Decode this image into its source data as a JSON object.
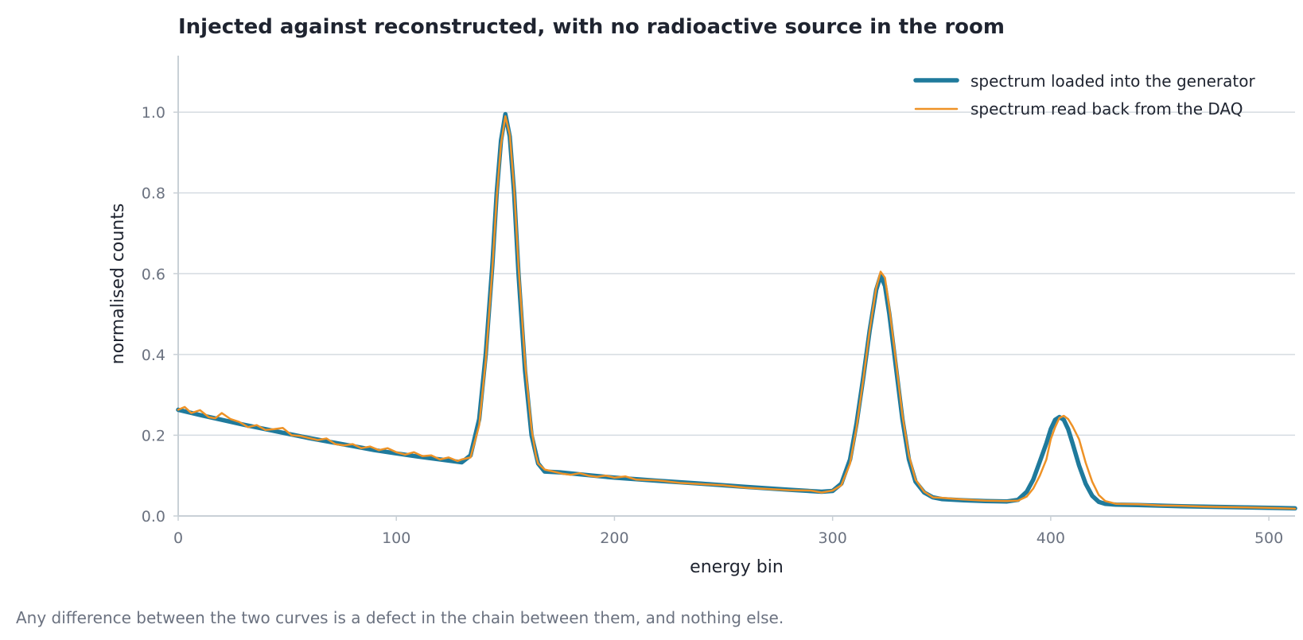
{
  "chart_data": {
    "type": "line",
    "title": "Injected against reconstructed, with no radioactive source in the room",
    "xlabel": "energy bin",
    "ylabel": "normalised counts",
    "caption": "Any difference between the two curves is a defect in the chain between them, and nothing else.",
    "xlim": [
      0,
      512
    ],
    "ylim": [
      0,
      1.14
    ],
    "x_ticks": [
      0,
      100,
      200,
      300,
      400,
      500
    ],
    "y_ticks": [
      0.0,
      0.2,
      0.4,
      0.6,
      0.8,
      1.0
    ],
    "x_tick_labels": [
      "0",
      "100",
      "200",
      "300",
      "400",
      "500"
    ],
    "y_tick_labels": [
      "0.0",
      "0.2",
      "0.4",
      "0.6",
      "0.8",
      "1.0"
    ],
    "grid": "horizontal",
    "legend_position": "top-right",
    "colors": {
      "injected": "#1f7a9c",
      "readback": "#ee9226",
      "grid": "#d5dbe1",
      "axis": "#c9d0d6"
    },
    "series": [
      {
        "name": "spectrum loaded into the generator",
        "x": [
          0,
          10,
          20,
          30,
          40,
          50,
          60,
          70,
          80,
          90,
          100,
          110,
          120,
          130,
          134,
          138,
          141,
          144,
          146,
          148,
          150,
          152,
          154,
          156,
          159,
          162,
          165,
          168,
          175,
          190,
          200,
          220,
          240,
          260,
          280,
          295,
          300,
          304,
          308,
          311,
          314,
          317,
          320,
          322,
          324,
          326,
          329,
          332,
          335,
          338,
          342,
          346,
          350,
          360,
          370,
          380,
          385,
          389,
          392,
          395,
          398,
          400,
          402,
          404,
          406,
          408,
          410,
          413,
          416,
          419,
          422,
          425,
          430,
          440,
          460,
          480,
          500,
          512
        ],
        "y": [
          0.263,
          0.25,
          0.238,
          0.226,
          0.215,
          0.204,
          0.193,
          0.183,
          0.173,
          0.163,
          0.155,
          0.147,
          0.14,
          0.133,
          0.15,
          0.24,
          0.4,
          0.62,
          0.8,
          0.93,
          0.995,
          0.94,
          0.8,
          0.6,
          0.36,
          0.2,
          0.13,
          0.11,
          0.108,
          0.1,
          0.095,
          0.087,
          0.08,
          0.072,
          0.065,
          0.06,
          0.062,
          0.08,
          0.14,
          0.23,
          0.34,
          0.46,
          0.56,
          0.595,
          0.57,
          0.5,
          0.37,
          0.24,
          0.14,
          0.085,
          0.058,
          0.046,
          0.042,
          0.039,
          0.037,
          0.036,
          0.04,
          0.06,
          0.09,
          0.135,
          0.18,
          0.215,
          0.238,
          0.245,
          0.238,
          0.215,
          0.18,
          0.125,
          0.08,
          0.05,
          0.035,
          0.03,
          0.028,
          0.027,
          0.024,
          0.022,
          0.02,
          0.019
        ]
      },
      {
        "name": "spectrum read back from the DAQ",
        "x": [
          0,
          3,
          6,
          10,
          14,
          17,
          20,
          24,
          28,
          32,
          36,
          40,
          44,
          48,
          52,
          56,
          60,
          64,
          68,
          72,
          76,
          80,
          84,
          88,
          92,
          96,
          100,
          104,
          108,
          112,
          116,
          120,
          124,
          128,
          130,
          134,
          138,
          141,
          144,
          146,
          148,
          150,
          152,
          154,
          156,
          159,
          162,
          164,
          165,
          166,
          168,
          172,
          176,
          180,
          184,
          188,
          192,
          196,
          200,
          205,
          210,
          220,
          230,
          240,
          250,
          260,
          270,
          280,
          290,
          295,
          300,
          304,
          308,
          311,
          314,
          317,
          320,
          322,
          324,
          326,
          329,
          332,
          335,
          338,
          342,
          346,
          350,
          355,
          360,
          370,
          380,
          385,
          389,
          392,
          395,
          398,
          400,
          402,
          404,
          406,
          408,
          410,
          413,
          416,
          419,
          422,
          425,
          430,
          440,
          450,
          460,
          470,
          480,
          490,
          500,
          512
        ],
        "y": [
          0.263,
          0.27,
          0.255,
          0.262,
          0.245,
          0.242,
          0.255,
          0.24,
          0.233,
          0.22,
          0.225,
          0.213,
          0.215,
          0.218,
          0.2,
          0.198,
          0.193,
          0.188,
          0.192,
          0.178,
          0.175,
          0.178,
          0.168,
          0.172,
          0.163,
          0.168,
          0.158,
          0.152,
          0.158,
          0.148,
          0.15,
          0.14,
          0.145,
          0.136,
          0.14,
          0.145,
          0.225,
          0.385,
          0.61,
          0.79,
          0.92,
          0.99,
          0.945,
          0.81,
          0.62,
          0.38,
          0.215,
          0.15,
          0.13,
          0.125,
          0.115,
          0.11,
          0.105,
          0.102,
          0.106,
          0.1,
          0.097,
          0.1,
          0.095,
          0.098,
          0.09,
          0.088,
          0.082,
          0.079,
          0.076,
          0.07,
          0.067,
          0.064,
          0.063,
          0.058,
          0.063,
          0.076,
          0.13,
          0.22,
          0.335,
          0.46,
          0.565,
          0.605,
          0.59,
          0.515,
          0.385,
          0.25,
          0.15,
          0.09,
          0.06,
          0.046,
          0.045,
          0.043,
          0.041,
          0.038,
          0.037,
          0.038,
          0.048,
          0.068,
          0.1,
          0.14,
          0.19,
          0.22,
          0.243,
          0.248,
          0.24,
          0.222,
          0.19,
          0.132,
          0.085,
          0.052,
          0.037,
          0.03,
          0.029,
          0.026,
          0.025,
          0.023,
          0.022,
          0.021,
          0.02,
          0.018
        ]
      }
    ]
  }
}
